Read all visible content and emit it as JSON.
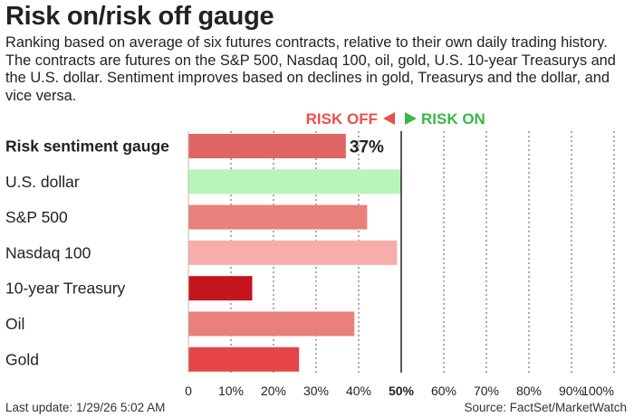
{
  "header": {
    "title": "Risk on/risk off gauge",
    "subtitle": "Ranking based on average of six futures contracts, relative to their own daily trading history. The contracts are futures on the S&P 500, Nasdaq 100, oil, gold, U.S. 10-year Treasurys and the U.S. dollar. Sentiment improves based on declines in gold, Treasurys and the dollar, and vice versa."
  },
  "legend": {
    "risk_off": "RISK OFF",
    "risk_on": "RISK ON",
    "risk_off_color": "#e8504a",
    "risk_on_color": "#3cb54a"
  },
  "footer": {
    "last_update": "Last update: 1/29/26 5:02 AM",
    "source": "Source: FactSet/MarketWatch"
  },
  "chart_data": {
    "type": "bar",
    "orientation": "horizontal",
    "categories": [
      "Risk sentiment gauge",
      "U.S. dollar",
      "S&P 500",
      "Nasdaq 100",
      "10-year Treasury",
      "Oil",
      "Gold"
    ],
    "values": [
      37,
      50,
      42,
      49,
      15,
      39,
      26
    ],
    "value_labels": [
      "37%",
      "",
      "",
      "",
      "",
      "",
      ""
    ],
    "bar_colors": [
      "#e06666",
      "#b8f5b8",
      "#e8817b",
      "#f7aeaa",
      "#c4161c",
      "#e8817b",
      "#e54546"
    ],
    "xlim": [
      0,
      100
    ],
    "xticks": [
      0,
      10,
      20,
      30,
      40,
      50,
      60,
      70,
      80,
      90,
      100
    ],
    "xtick_labels": [
      "0",
      "10%",
      "20%",
      "30%",
      "40%",
      "50%",
      "60%",
      "70%",
      "80%",
      "90%",
      "100%"
    ],
    "midline": 50,
    "grid": "vertical dotted",
    "legend_placement": "top-center"
  }
}
